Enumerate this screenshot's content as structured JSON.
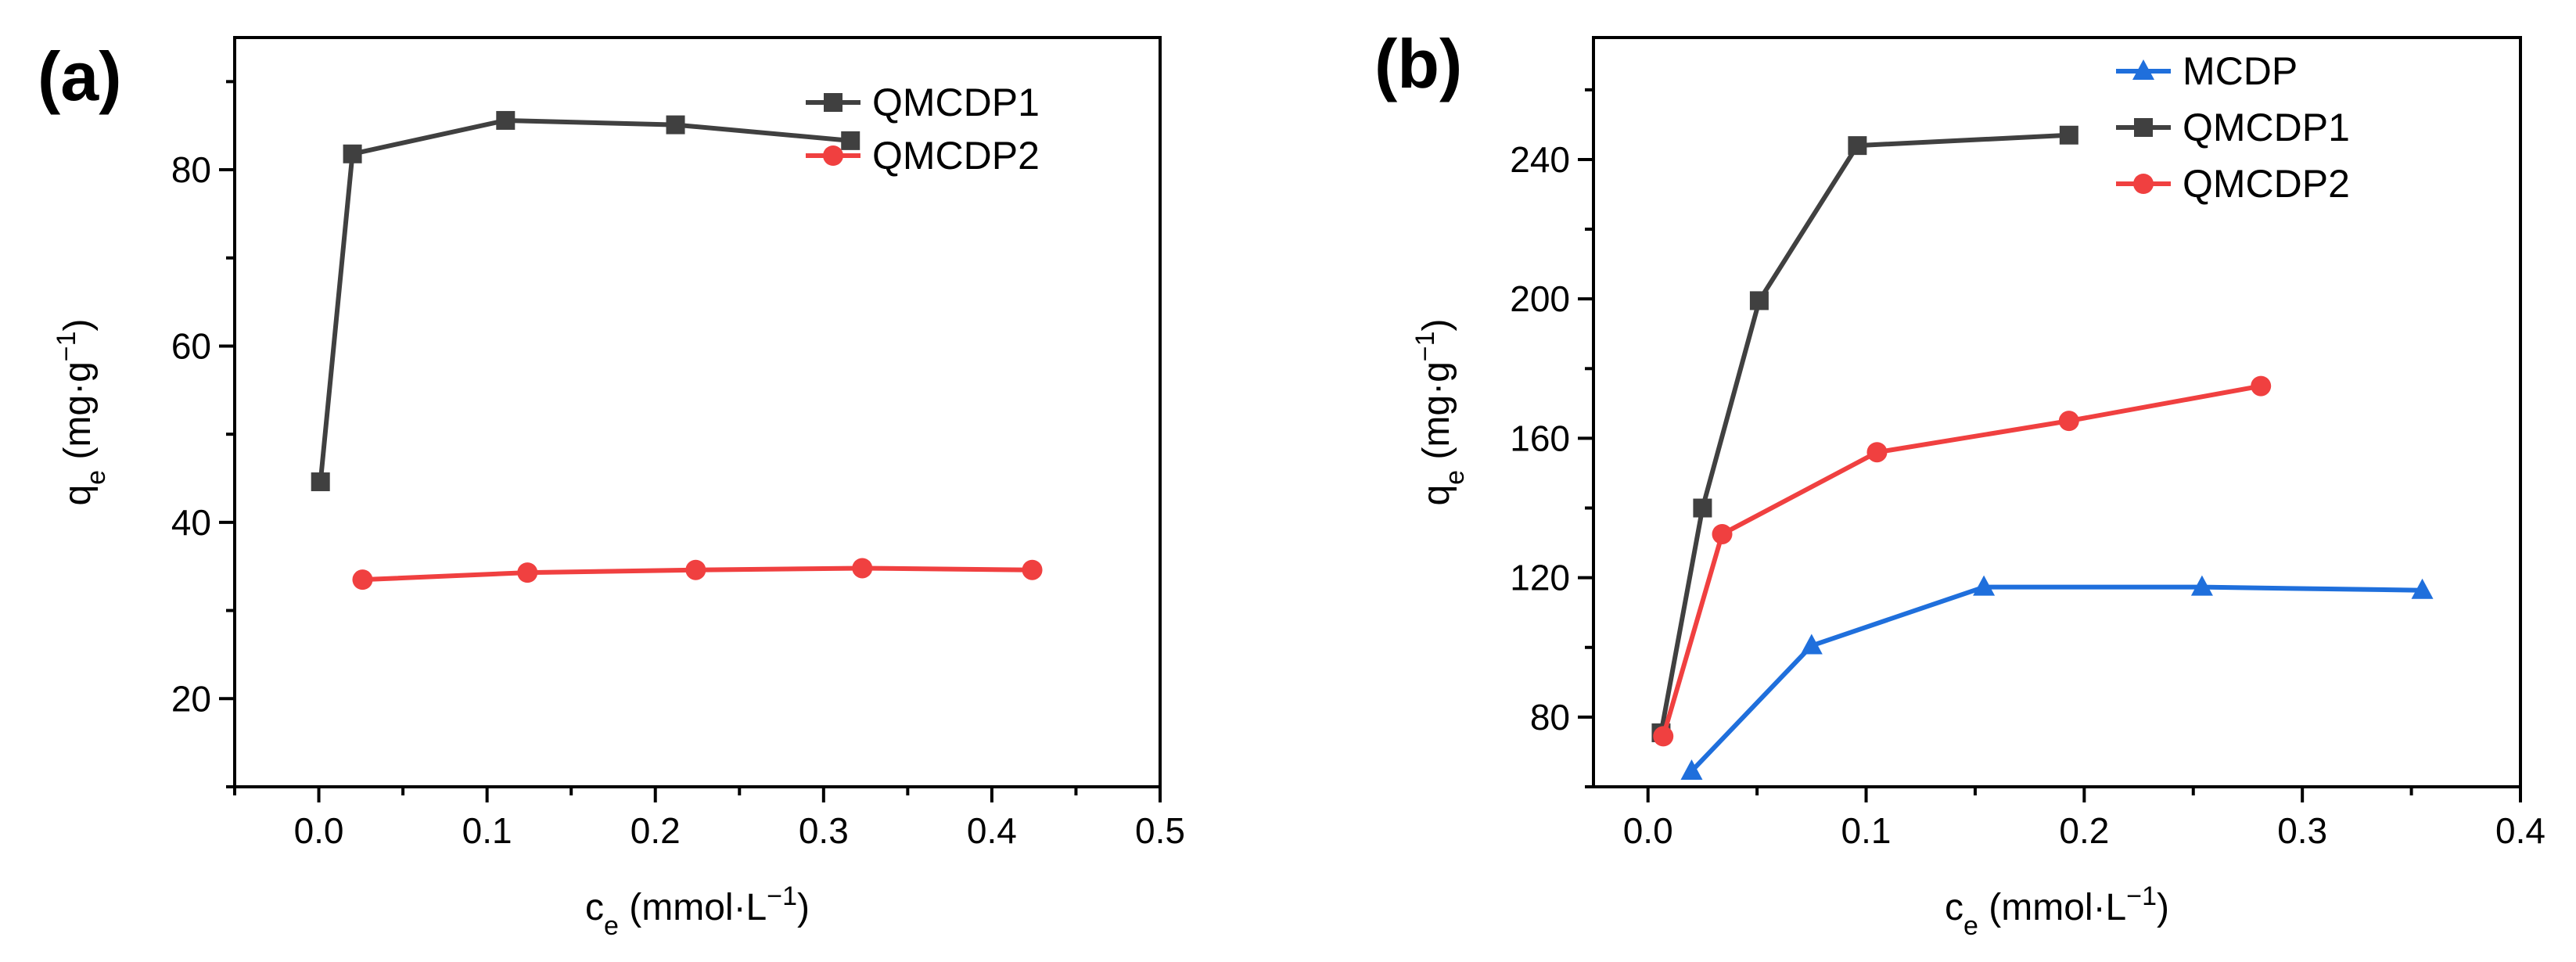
{
  "chart_data": [
    {
      "panel_label": "(a)",
      "type": "line",
      "xlabel": {
        "main": "c",
        "sub": "e",
        "rest": " (mmol·L",
        "sup": "−1",
        "close": ")"
      },
      "ylabel": {
        "main": "q",
        "sub": "e",
        "rest": " (mg·g",
        "sup": "−1",
        "close": ")"
      },
      "xlim": [
        -0.05,
        0.5
      ],
      "ylim": [
        10,
        95
      ],
      "xticks": [
        0.0,
        0.1,
        0.2,
        0.3,
        0.4,
        0.5
      ],
      "xtick_labels": [
        "0.0",
        "0.1",
        "0.2",
        "0.3",
        "0.4",
        "0.5"
      ],
      "yticks": [
        20,
        40,
        60,
        80
      ],
      "ytick_labels": [
        "20",
        "40",
        "60",
        "80"
      ],
      "legend_position": "top-right",
      "series": [
        {
          "name": "QMCDP1",
          "marker": "square",
          "color": "#404040",
          "x": [
            0.001,
            0.02,
            0.111,
            0.212,
            0.316
          ],
          "y": [
            44.6,
            81.8,
            85.6,
            85.1,
            83.3
          ]
        },
        {
          "name": "QMCDP2",
          "marker": "circle",
          "color": "#f04040",
          "x": [
            0.026,
            0.124,
            0.224,
            0.323,
            0.424
          ],
          "y": [
            33.5,
            34.3,
            34.6,
            34.8,
            34.6
          ]
        }
      ]
    },
    {
      "panel_label": "(b)",
      "type": "line",
      "xlabel": {
        "main": "c",
        "sub": "e",
        "rest": " (mmol·L",
        "sup": "−1",
        "close": ")"
      },
      "ylabel": {
        "main": "q",
        "sub": "e",
        "rest": " (mg·g",
        "sup": "−1",
        "close": ")"
      },
      "xlim": [
        -0.025,
        0.4
      ],
      "ylim": [
        60,
        275
      ],
      "xticks": [
        0.0,
        0.1,
        0.2,
        0.3,
        0.4
      ],
      "xtick_labels": [
        "0.0",
        "0.1",
        "0.2",
        "0.3",
        "0.4"
      ],
      "yticks": [
        80,
        120,
        160,
        200,
        240
      ],
      "ytick_labels": [
        "80",
        "120",
        "160",
        "200",
        "240"
      ],
      "legend_position": "top-right",
      "series": [
        {
          "name": "MCDP",
          "marker": "triangle",
          "color": "#1f6fdc",
          "x": [
            0.02,
            0.075,
            0.154,
            0.254,
            0.355
          ],
          "y": [
            64.5,
            100.5,
            117.3,
            117.3,
            116.4
          ]
        },
        {
          "name": "QMCDP1",
          "marker": "square",
          "color": "#404040",
          "x": [
            0.006,
            0.025,
            0.051,
            0.096,
            0.193
          ],
          "y": [
            75.5,
            140.0,
            199.5,
            244.0,
            247.0
          ]
        },
        {
          "name": "QMCDP2",
          "marker": "circle",
          "color": "#f04040",
          "x": [
            0.007,
            0.034,
            0.105,
            0.193,
            0.281
          ],
          "y": [
            74.5,
            132.5,
            156.0,
            165.0,
            175.0
          ]
        }
      ]
    }
  ]
}
